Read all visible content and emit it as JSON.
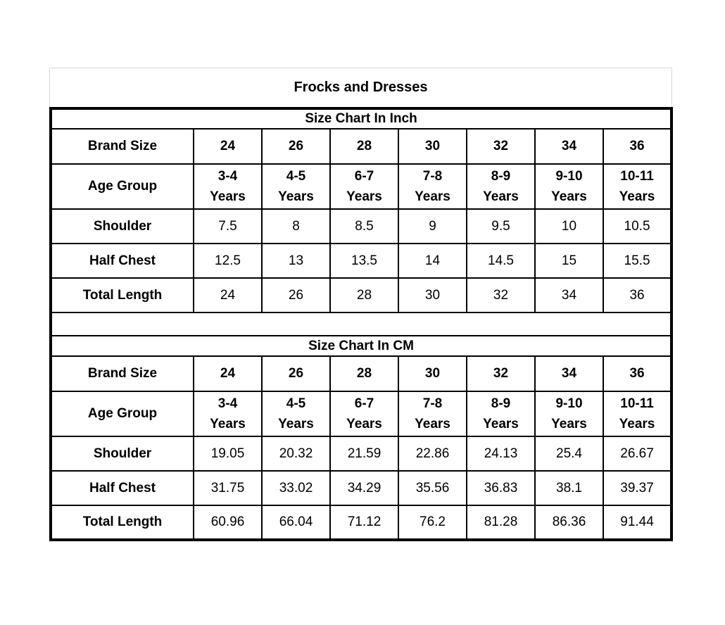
{
  "title": "Frocks and Dresses",
  "colors": {
    "background": "#ffffff",
    "table_border": "#000000",
    "title_box_border": "#d8d8d8",
    "text": "#000000"
  },
  "chart_data": [
    {
      "type": "table",
      "title": "Size Chart In Inch",
      "rows": [
        {
          "label": "Brand Size",
          "style": "header",
          "values": [
            "24",
            "26",
            "28",
            "30",
            "32",
            "34",
            "36"
          ]
        },
        {
          "label": "Age Group",
          "style": "header",
          "values": [
            "3-4\nYears",
            "4-5\nYears",
            "6-7\nYears",
            "7-8\nYears",
            "8-9\nYears",
            "9-10\nYears",
            "10-11\nYears"
          ]
        },
        {
          "label": "Shoulder",
          "style": "data",
          "values": [
            "7.5",
            "8",
            "8.5",
            "9",
            "9.5",
            "10",
            "10.5"
          ]
        },
        {
          "label": "Half Chest",
          "style": "data",
          "values": [
            "12.5",
            "13",
            "13.5",
            "14",
            "14.5",
            "15",
            "15.5"
          ]
        },
        {
          "label": "Total Length",
          "style": "data",
          "values": [
            "24",
            "26",
            "28",
            "30",
            "32",
            "34",
            "36"
          ]
        }
      ]
    },
    {
      "type": "table",
      "title": "Size Chart In CM",
      "rows": [
        {
          "label": "Brand Size",
          "style": "header",
          "values": [
            "24",
            "26",
            "28",
            "30",
            "32",
            "34",
            "36"
          ]
        },
        {
          "label": "Age Group",
          "style": "header",
          "values": [
            "3-4\nYears",
            "4-5\nYears",
            "6-7\nYears",
            "7-8\nYears",
            "8-9\nYears",
            "9-10\nYears",
            "10-11\nYears"
          ]
        },
        {
          "label": "Shoulder",
          "style": "data",
          "values": [
            "19.05",
            "20.32",
            "21.59",
            "22.86",
            "24.13",
            "25.4",
            "26.67"
          ]
        },
        {
          "label": "Half Chest",
          "style": "data",
          "values": [
            "31.75",
            "33.02",
            "34.29",
            "35.56",
            "36.83",
            "38.1",
            "39.37"
          ]
        },
        {
          "label": "Total Length",
          "style": "data",
          "values": [
            "60.96",
            "66.04",
            "71.12",
            "76.2",
            "81.28",
            "86.36",
            "91.44"
          ]
        }
      ]
    }
  ]
}
